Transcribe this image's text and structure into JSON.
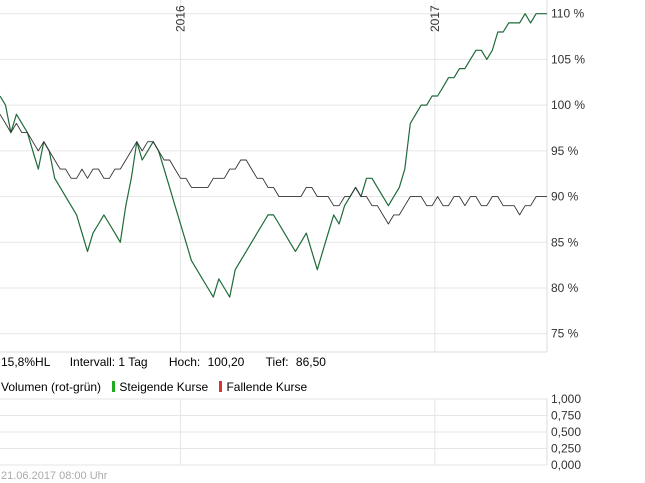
{
  "chart_data": [
    {
      "type": "line",
      "x_ticks": [
        "2016",
        "2017"
      ],
      "y_ticks": [
        "75 %",
        "80 %",
        "85 %",
        "90 %",
        "95 %",
        "100 %",
        "105 %",
        "110 %"
      ],
      "ylim": [
        73,
        111.5
      ],
      "grid": true,
      "x_range": [
        0,
        100
      ],
      "x_tick_positions": [
        33,
        79.5
      ],
      "series": [
        {
          "color": "#1f6b3a",
          "x": [
            0,
            1,
            2,
            3,
            4,
            5,
            6,
            7,
            8,
            9,
            10,
            11,
            12,
            13,
            14,
            15,
            16,
            17,
            18,
            19,
            20,
            21,
            22,
            23,
            24,
            25,
            26,
            27,
            28,
            29,
            30,
            31,
            32,
            33,
            34,
            35,
            36,
            37,
            38,
            39,
            40,
            41,
            42,
            43,
            44,
            45,
            46,
            47,
            48,
            49,
            50,
            51,
            52,
            53,
            54,
            55,
            56,
            57,
            58,
            59,
            60,
            61,
            62,
            63,
            64,
            65,
            66,
            67,
            68,
            69,
            70,
            71,
            72,
            73,
            74,
            75,
            76,
            77,
            78,
            79,
            80,
            81,
            82,
            83,
            84,
            85,
            86,
            87,
            88,
            89,
            90,
            91,
            92,
            93,
            94,
            95,
            96,
            97,
            98,
            99,
            100
          ],
          "values": [
            101,
            100,
            97,
            99,
            98,
            97,
            95,
            93,
            96,
            95,
            92,
            91,
            90,
            89,
            88,
            86,
            84,
            86,
            87,
            88,
            87,
            86,
            85,
            89,
            92,
            96,
            94,
            95,
            96,
            95,
            93,
            91,
            89,
            87,
            85,
            83,
            82,
            81,
            80,
            79,
            81,
            80,
            79,
            82,
            83,
            84,
            85,
            86,
            87,
            88,
            88,
            87,
            86,
            85,
            84,
            85,
            86,
            84,
            82,
            84,
            86,
            88,
            87,
            89,
            90,
            91,
            90,
            92,
            92,
            91,
            90,
            89,
            90,
            91,
            93,
            98,
            99,
            100,
            100,
            101,
            101,
            102,
            103,
            103,
            104,
            104,
            105,
            106,
            106,
            105,
            106,
            108,
            108,
            109,
            109,
            109,
            110,
            109,
            110,
            110,
            110
          ]
        },
        {
          "color": "#333333",
          "x": [
            0,
            1,
            2,
            3,
            4,
            5,
            6,
            7,
            8,
            9,
            10,
            11,
            12,
            13,
            14,
            15,
            16,
            17,
            18,
            19,
            20,
            21,
            22,
            23,
            24,
            25,
            26,
            27,
            28,
            29,
            30,
            31,
            32,
            33,
            34,
            35,
            36,
            37,
            38,
            39,
            40,
            41,
            42,
            43,
            44,
            45,
            46,
            47,
            48,
            49,
            50,
            51,
            52,
            53,
            54,
            55,
            56,
            57,
            58,
            59,
            60,
            61,
            62,
            63,
            64,
            65,
            66,
            67,
            68,
            69,
            70,
            71,
            72,
            73,
            74,
            75,
            76,
            77,
            78,
            79,
            80,
            81,
            82,
            83,
            84,
            85,
            86,
            87,
            88,
            89,
            90,
            91,
            92,
            93,
            94,
            95,
            96,
            97,
            98,
            99,
            100
          ],
          "values": [
            99,
            98,
            97,
            98,
            97,
            97,
            96,
            95,
            96,
            95,
            94,
            93,
            93,
            92,
            92,
            93,
            92,
            93,
            93,
            92,
            92,
            93,
            93,
            94,
            95,
            96,
            95,
            96,
            96,
            95,
            94,
            94,
            93,
            92,
            92,
            91,
            91,
            91,
            91,
            92,
            92,
            92,
            93,
            93,
            94,
            94,
            93,
            92,
            92,
            91,
            91,
            90,
            90,
            90,
            90,
            90,
            91,
            91,
            90,
            90,
            90,
            89,
            89,
            90,
            90,
            91,
            90,
            90,
            89,
            89,
            88,
            87,
            88,
            88,
            89,
            90,
            90,
            90,
            89,
            89,
            90,
            89,
            89,
            90,
            90,
            89,
            90,
            90,
            89,
            89,
            90,
            90,
            89,
            89,
            89,
            88,
            89,
            89,
            90,
            90,
            90
          ]
        }
      ]
    },
    {
      "type": "bar",
      "y_ticks": [
        "1,000",
        "0,750",
        "0,500",
        "0,250",
        "0,000"
      ],
      "ylim": [
        0,
        1
      ],
      "legend": [
        "Steigende Kurse",
        "Fallende Kurse"
      ],
      "legend_colors": [
        "#22aa22",
        "#dd3333"
      ],
      "values": []
    }
  ],
  "info": {
    "range": "15,8%HL",
    "interval": "Intervall: 1 Tag",
    "hoch_label": "Hoch:",
    "hoch_value": "100,20",
    "tief_label": "Tief:",
    "tief_value": "86,50"
  },
  "volume_label": "Volumen (rot-grün)",
  "timestamp": "21.06.2017 08:00 Uhr"
}
